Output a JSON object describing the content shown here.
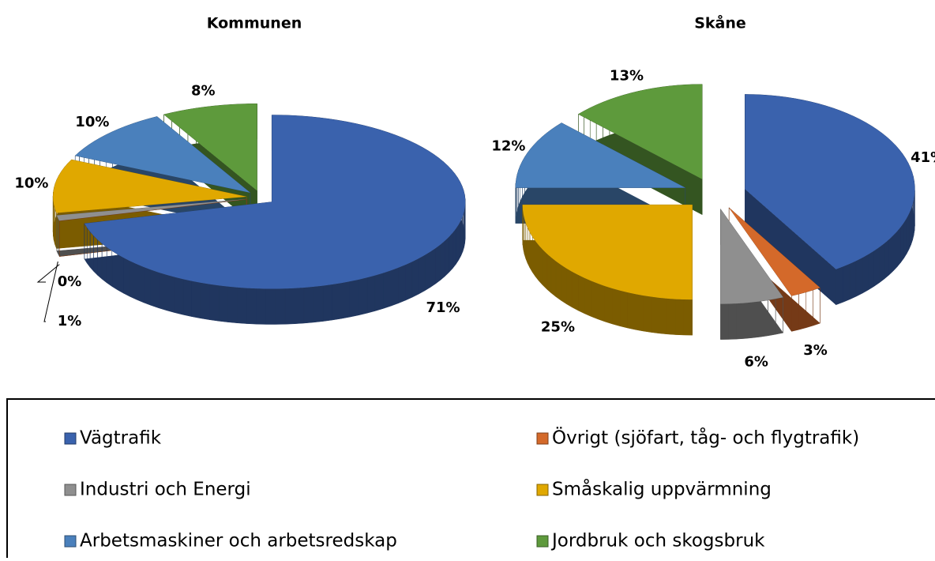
{
  "chart_data": [
    {
      "type": "pie",
      "title": "Kommunen",
      "categories": [
        "Vägtrafik",
        "Övrigt (sjöfart, tåg- och flygtrafik)",
        "Industri och Energi",
        "Småskalig uppvärmning",
        "Arbetsmaskiner och arbetsredskap",
        "Jordbruk och skogsbruk"
      ],
      "values": [
        71,
        0,
        1,
        10,
        10,
        8
      ],
      "value_labels": [
        "71%",
        "0%",
        "1%",
        "10%",
        "10%",
        "8%"
      ],
      "colors": [
        "#3a62ad",
        "#d4692a",
        "#8f8f8f",
        "#e0a800",
        "#4a80bc",
        "#5e9a3c"
      ]
    },
    {
      "type": "pie",
      "title": "Skåne",
      "categories": [
        "Vägtrafik",
        "Övrigt (sjöfart, tåg- och flygtrafik)",
        "Industri och Energi",
        "Småskalig uppvärmning",
        "Arbetsmaskiner och arbetsredskap",
        "Jordbruk och skogsbruk"
      ],
      "values": [
        41,
        3,
        6,
        25,
        12,
        13
      ],
      "value_labels": [
        "41%",
        "3%",
        "6%",
        "25%",
        "12%",
        "13%"
      ],
      "colors": [
        "#3a62ad",
        "#d4692a",
        "#8f8f8f",
        "#e0a800",
        "#4a80bc",
        "#5e9a3c"
      ]
    }
  ]
}
